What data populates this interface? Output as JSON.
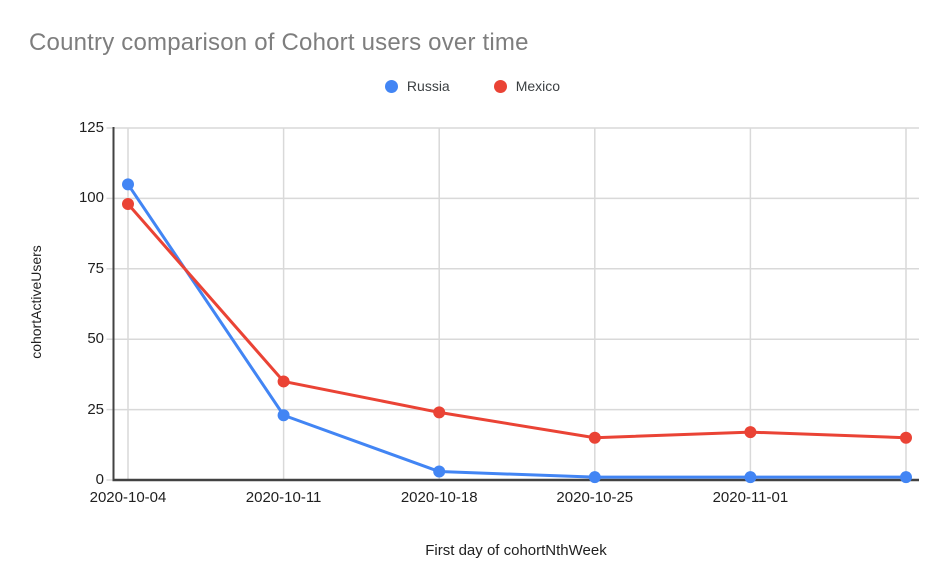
{
  "chart_data": {
    "type": "line",
    "title": "Country comparison of Cohort users over time",
    "xlabel": "First day of cohortNthWeek",
    "ylabel": "cohortActiveUsers",
    "categories": [
      "2020-10-04",
      "2020-10-11",
      "2020-10-18",
      "2020-10-25",
      "2020-11-01",
      ""
    ],
    "series": [
      {
        "name": "Russia",
        "color": "#4285f4",
        "values": [
          105,
          23,
          3,
          1,
          1,
          1
        ]
      },
      {
        "name": "Mexico",
        "color": "#ea4335",
        "values": [
          98,
          35,
          24,
          15,
          17,
          15
        ]
      }
    ],
    "ylim": [
      0,
      125
    ],
    "yticks": [
      0,
      25,
      50,
      75,
      100,
      125
    ],
    "grid": true,
    "legend_position": "top",
    "point_radius": 6,
    "line_width": 3,
    "colors": {
      "title_text": "#7e7e7e",
      "axis_text": "#1f1f1f",
      "axis_line": "#424242",
      "gridline": "#d9d9d9",
      "legend_text": "#3c4043",
      "background": "#ffffff"
    }
  }
}
